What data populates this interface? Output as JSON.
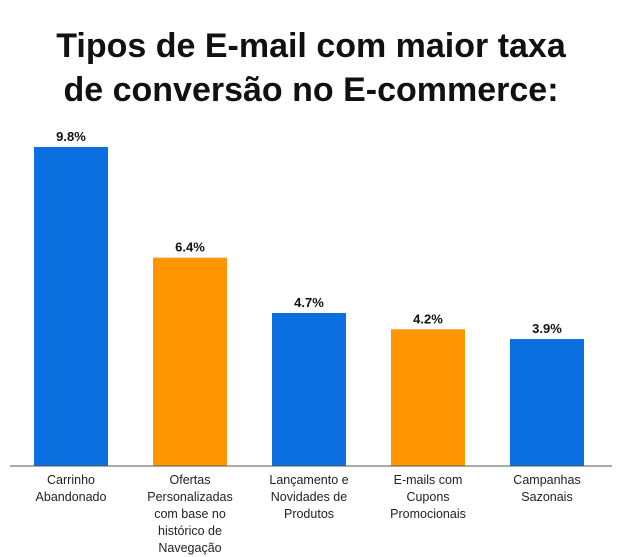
{
  "chart_data": {
    "type": "bar",
    "title_lines": [
      "Tipos de E-mail com maior taxa",
      "de conversão no E-commerce:"
    ],
    "categories": [
      [
        "Carrinho",
        "Abandonado"
      ],
      [
        "Ofertas",
        "Personalizadas",
        "com base no",
        "histórico de",
        "Navegação"
      ],
      [
        "Lançamento e",
        "Novidades de",
        "Produtos"
      ],
      [
        "E-mails com",
        "Cupons",
        "Promocionais"
      ],
      [
        "Campanhas",
        "Sazonais"
      ]
    ],
    "values": [
      9.8,
      6.4,
      4.7,
      4.2,
      3.9
    ],
    "data_labels": [
      "9.8%",
      "6.4%",
      "4.7%",
      "4.2%",
      "3.9%"
    ],
    "bar_colors": [
      "#0b6fe0",
      "#ff9500",
      "#0b6fe0",
      "#ff9500",
      "#0b6fe0"
    ],
    "ylim": [
      0,
      9.8
    ],
    "grid": false,
    "legend": "none"
  }
}
